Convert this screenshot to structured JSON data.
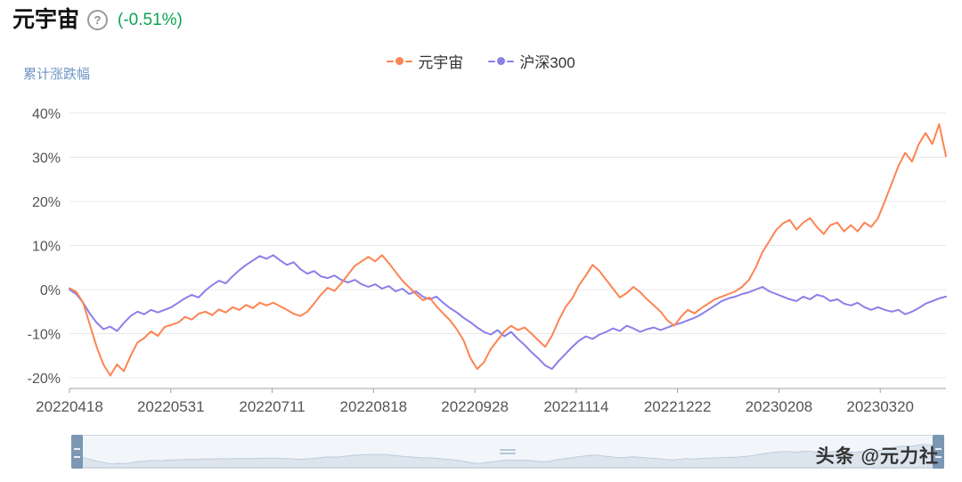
{
  "header": {
    "title": "元宇宙",
    "help_icon": "?",
    "change_label": "(-0.51%)",
    "change_color": "#0ca350"
  },
  "legend": [
    {
      "label": "元宇宙",
      "color": "#fc8452"
    },
    {
      "label": "沪深300",
      "color": "#8b7fe8"
    }
  ],
  "chart_data": {
    "type": "line",
    "title": "累计涨跌幅",
    "ylabel": "累计涨跌幅",
    "ylim": [
      -20,
      40
    ],
    "y_ticks": [
      "40%",
      "30%",
      "20%",
      "10%",
      "0%",
      "-10%",
      "-20%"
    ],
    "x_tick_labels": [
      "20220418",
      "20220531",
      "20220711",
      "20220818",
      "20220928",
      "20221114",
      "20221222",
      "20230208",
      "20230320"
    ],
    "grid": true,
    "legend_position": "top-center",
    "series": [
      {
        "name": "元宇宙",
        "color": "#fc8452",
        "values": [
          0.3,
          -0.5,
          -3,
          -8,
          -13,
          -17,
          -19.5,
          -17,
          -18.5,
          -15,
          -12,
          -11,
          -9.5,
          -10.5,
          -8.5,
          -8,
          -7.5,
          -6.2,
          -6.8,
          -5.5,
          -5,
          -5.8,
          -4.5,
          -5.2,
          -4,
          -4.6,
          -3.5,
          -4.2,
          -3,
          -3.6,
          -3,
          -3.8,
          -4.6,
          -5.5,
          -6,
          -5,
          -3.2,
          -1.2,
          0.4,
          -0.3,
          1.4,
          3.4,
          5.4,
          6.4,
          7.4,
          6.4,
          7.8,
          6,
          4,
          2,
          0.5,
          -1,
          -2.4,
          -1.8,
          -3.8,
          -5.4,
          -7,
          -9,
          -11.5,
          -15.5,
          -18,
          -16.5,
          -13.5,
          -11.5,
          -9.5,
          -8.2,
          -9.2,
          -8.6,
          -10,
          -11.5,
          -13,
          -10.5,
          -7,
          -4,
          -2,
          1,
          3.2,
          5.6,
          4.2,
          2.2,
          0.2,
          -1.8,
          -0.8,
          0.6,
          -0.6,
          -2.2,
          -3.6,
          -5,
          -7,
          -8.2,
          -6.2,
          -4.6,
          -5.4,
          -4.2,
          -3.2,
          -2.2,
          -1.6,
          -1,
          -0.4,
          0.6,
          2.2,
          5,
          8.5,
          11,
          13.5,
          15,
          15.8,
          13.6,
          15.2,
          16.2,
          14.2,
          12.6,
          14.6,
          15.2,
          13.2,
          14.6,
          13.2,
          15.2,
          14.2,
          16.2,
          20,
          24,
          28,
          31,
          29,
          33,
          35.5,
          33,
          37.5,
          30.2
        ]
      },
      {
        "name": "沪深300",
        "color": "#8b7fe8",
        "values": [
          0,
          -1,
          -3,
          -5.5,
          -7.5,
          -9,
          -8.4,
          -9.4,
          -7.6,
          -6,
          -5,
          -5.6,
          -4.6,
          -5.2,
          -4.6,
          -4,
          -3,
          -2,
          -1.2,
          -1.8,
          -0.2,
          1,
          2,
          1.4,
          3,
          4.4,
          5.6,
          6.6,
          7.6,
          7,
          7.8,
          6.6,
          5.6,
          6.2,
          4.6,
          3.6,
          4.2,
          3,
          2.6,
          3.2,
          2.2,
          1.6,
          2.2,
          1.2,
          0.6,
          1.2,
          0.2,
          0.8,
          -0.4,
          0.2,
          -1,
          -0.4,
          -1.6,
          -2.2,
          -1.6,
          -3,
          -4.2,
          -5.2,
          -6.4,
          -7.4,
          -8.6,
          -9.6,
          -10.2,
          -9.2,
          -10.6,
          -9.6,
          -11.2,
          -12.6,
          -14.2,
          -15.6,
          -17.2,
          -18,
          -16.2,
          -14.6,
          -13,
          -11.6,
          -10.6,
          -11.2,
          -10.2,
          -9.6,
          -8.8,
          -9.4,
          -8.2,
          -8.8,
          -9.6,
          -9,
          -8.6,
          -9.2,
          -8.6,
          -8,
          -7.6,
          -7,
          -6.4,
          -5.6,
          -4.6,
          -3.6,
          -2.6,
          -2,
          -1.6,
          -1,
          -0.6,
          0,
          0.6,
          -0.4,
          -1,
          -1.6,
          -2.2,
          -2.6,
          -1.6,
          -2.2,
          -1.2,
          -1.6,
          -2.6,
          -2.2,
          -3.2,
          -3.6,
          -3,
          -4,
          -4.6,
          -4,
          -4.6,
          -5,
          -4.6,
          -5.6,
          -5,
          -4.2,
          -3.2,
          -2.6,
          -2,
          -1.6
        ]
      }
    ]
  },
  "slider": {
    "track_color": "#f2f6fa",
    "handle_color": "#7b97b3"
  },
  "footer": {
    "watermark": "头条 @元力社"
  }
}
